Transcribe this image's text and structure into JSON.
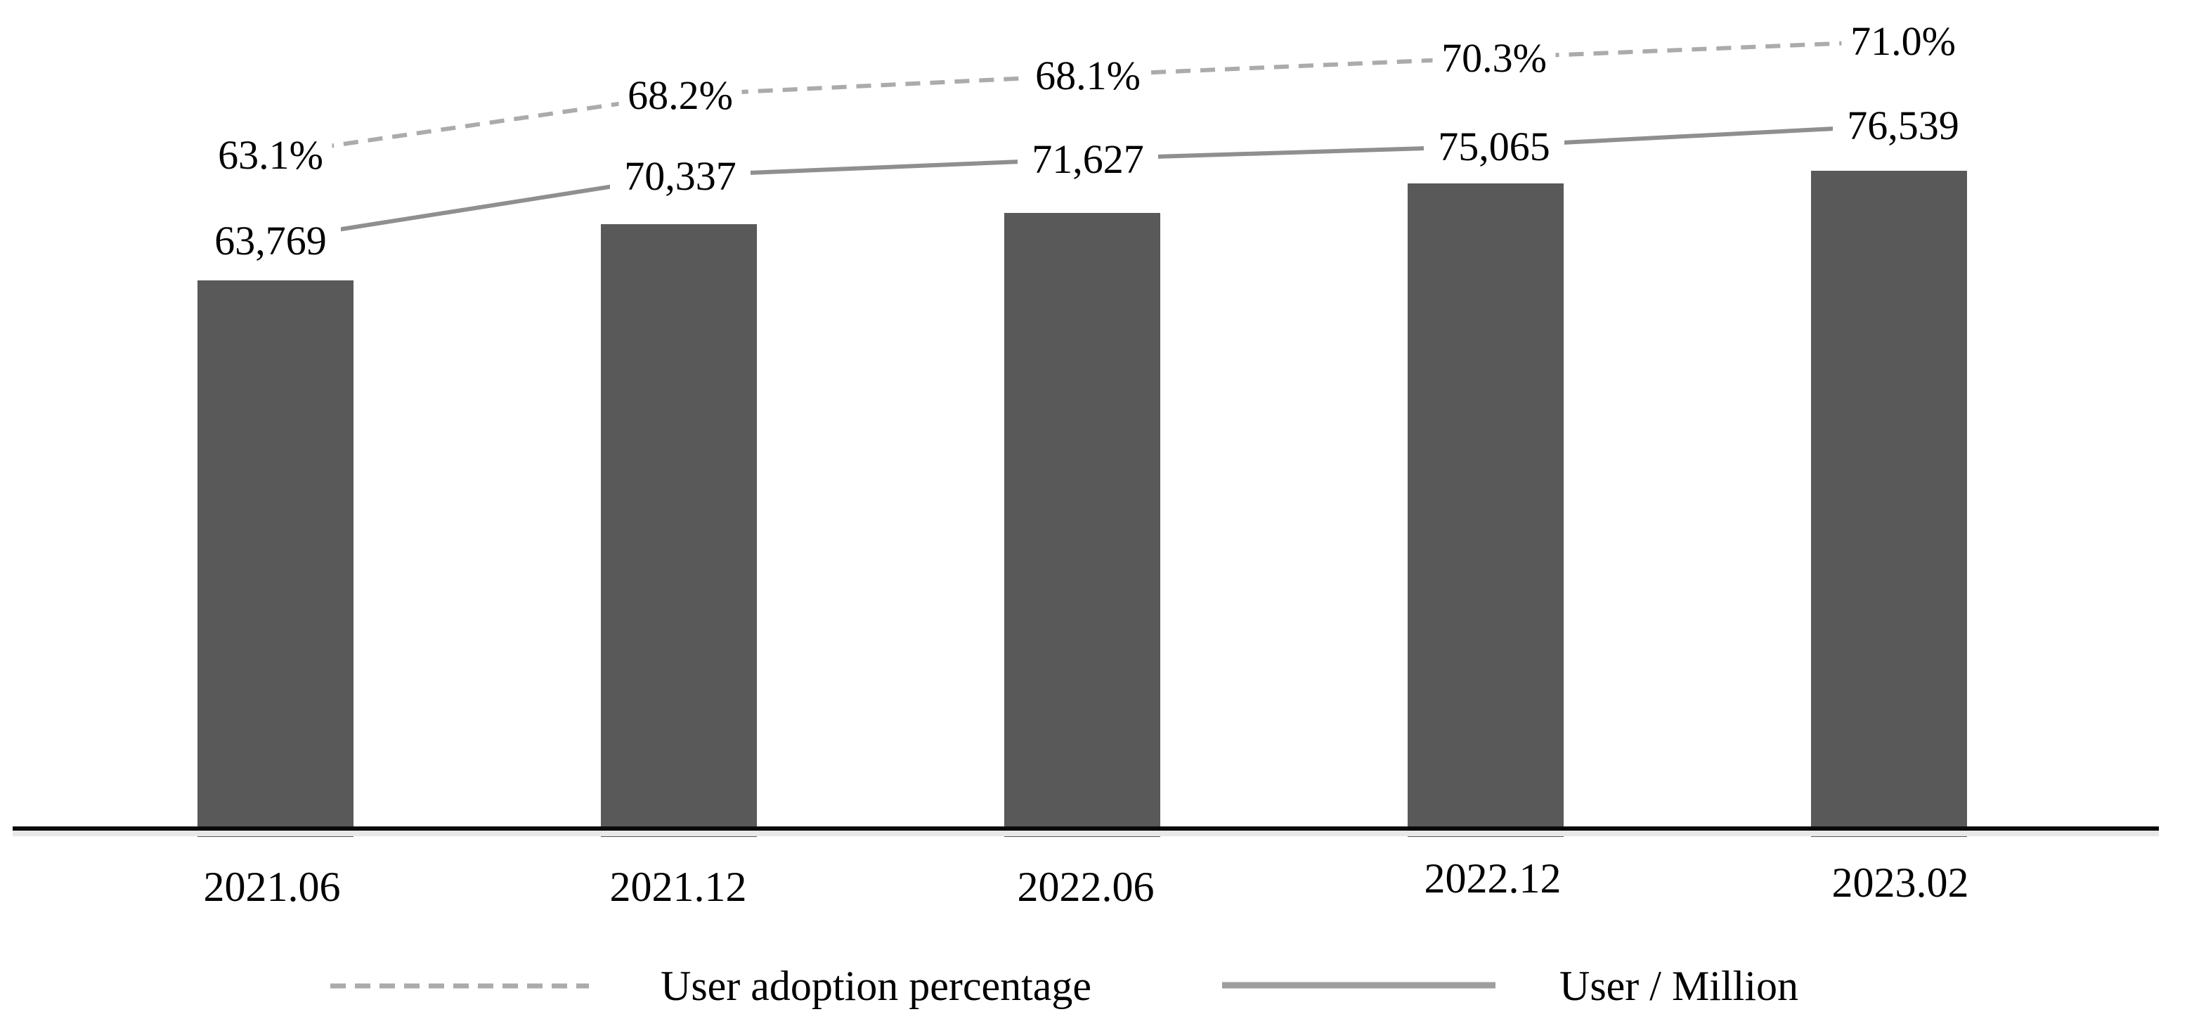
{
  "chart_data": {
    "type": "combo",
    "categories": [
      "2021.06",
      "2021.12",
      "2022.06",
      "2022.12",
      "2023.02"
    ],
    "series": [
      {
        "name": "User / Million",
        "render": "bar-with-line",
        "line_style": "solid",
        "values": [
          63769,
          70337,
          71627,
          75065,
          76539
        ],
        "labels": [
          "63,769",
          "70,337",
          "71,627",
          "75,065",
          "76,539"
        ],
        "bar_color": "#595959",
        "line_color": "#8f8f8f"
      },
      {
        "name": "User adoption percentage",
        "render": "line",
        "line_style": "dashed",
        "values_percent": [
          63.1,
          68.2,
          68.1,
          70.3,
          71.0
        ],
        "labels": [
          "63.1%",
          "68.2%",
          "68.1%",
          "70.3%",
          "71.0%"
        ],
        "line_color": "#ababab"
      }
    ],
    "title": "",
    "xlabel": "",
    "ylabel": "",
    "value_axis": {
      "visible": false,
      "min": 0
    },
    "grid": false,
    "axis_line_color": "#000000",
    "background": "#ffffff",
    "legend": {
      "position": "bottom",
      "items": [
        {
          "label": "User adoption percentage",
          "swatch": "dashed-line",
          "swatch_color": "#ababab"
        },
        {
          "label": "User / Million",
          "swatch": "solid-line",
          "swatch_color": "#9e9e9e"
        }
      ]
    }
  }
}
